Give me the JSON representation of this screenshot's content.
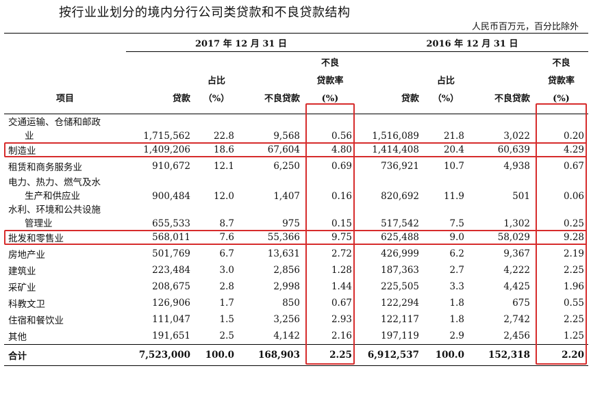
{
  "title": "按行业业划分的境内分行公司类贷款和不良贷款结构",
  "unit_note": "人民币百万元，百分比除外",
  "header": {
    "item_label": "项目",
    "year_2017": "2017 年 12 月 31 日",
    "year_2016": "2016 年 12 月 31 日",
    "loans": "贷款",
    "share_line1": "占比",
    "share_line2": "（%）",
    "npl": "不良贷款",
    "npl_ratio_line1": "不良",
    "npl_ratio_line2": "贷款率",
    "npl_ratio_line3": "(%)"
  },
  "rows": [
    {
      "label1": "交通运输、仓储和邮政",
      "label2": "业",
      "v": [
        "1,715,562",
        "22.8",
        "9,568",
        "0.56",
        "1,516,089",
        "21.8",
        "3,022",
        "0.20"
      ]
    },
    {
      "label1": "制造业",
      "v": [
        "1,409,206",
        "18.6",
        "67,604",
        "4.80",
        "1,414,408",
        "20.4",
        "60,639",
        "4.29"
      ]
    },
    {
      "label1": "租赁和商务服务业",
      "v": [
        "910,672",
        "12.1",
        "6,250",
        "0.69",
        "736,921",
        "10.7",
        "4,938",
        "0.67"
      ]
    },
    {
      "label1": "电力、热力、燃气及水",
      "label2": "生产和供应业",
      "v": [
        "900,484",
        "12.0",
        "1,407",
        "0.16",
        "820,692",
        "11.9",
        "501",
        "0.06"
      ]
    },
    {
      "label1": "水利、环境和公共设施",
      "label2": "管理业",
      "v": [
        "655,533",
        "8.7",
        "975",
        "0.15",
        "517,542",
        "7.5",
        "1,302",
        "0.25"
      ]
    },
    {
      "label1": "批发和零售业",
      "v": [
        "568,011",
        "7.6",
        "55,366",
        "9.75",
        "625,488",
        "9.0",
        "58,029",
        "9.28"
      ]
    },
    {
      "label1": "房地产业",
      "v": [
        "501,769",
        "6.7",
        "13,631",
        "2.72",
        "426,999",
        "6.2",
        "9,367",
        "2.19"
      ]
    },
    {
      "label1": "建筑业",
      "v": [
        "223,484",
        "3.0",
        "2,856",
        "1.28",
        "187,363",
        "2.7",
        "4,222",
        "2.25"
      ]
    },
    {
      "label1": "采矿业",
      "v": [
        "208,675",
        "2.8",
        "2,998",
        "1.44",
        "225,505",
        "3.3",
        "4,425",
        "1.96"
      ]
    },
    {
      "label1": "科教文卫",
      "v": [
        "126,906",
        "1.7",
        "850",
        "0.67",
        "122,294",
        "1.8",
        "675",
        "0.55"
      ]
    },
    {
      "label1": "住宿和餐饮业",
      "v": [
        "111,047",
        "1.5",
        "3,256",
        "2.93",
        "122,117",
        "1.8",
        "2,742",
        "2.25"
      ]
    },
    {
      "label1": "其他",
      "v": [
        "191,651",
        "2.5",
        "4,142",
        "2.16",
        "197,119",
        "2.9",
        "2,456",
        "1.25"
      ]
    }
  ],
  "total": {
    "label": "合计",
    "v": [
      "7,523,000",
      "100.0",
      "168,903",
      "2.25",
      "6,912,537",
      "100.0",
      "152,318",
      "2.20"
    ]
  },
  "highlight_color": "#d62b2b"
}
